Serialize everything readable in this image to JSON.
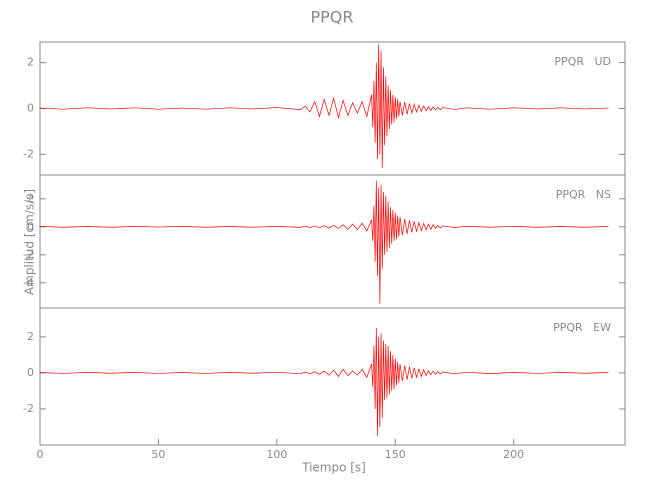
{
  "chart_data": [
    {
      "type": "line",
      "title": "PPQR",
      "label": "PPQR   UD",
      "color": "#ff0000",
      "x": [
        0,
        10,
        20,
        30,
        40,
        50,
        60,
        70,
        80,
        90,
        100,
        110,
        112,
        114,
        116,
        118,
        120,
        122,
        124,
        126,
        128,
        130,
        132,
        134,
        136,
        138,
        140,
        140.5,
        141,
        141.5,
        142,
        142.5,
        143,
        143.5,
        144,
        144.5,
        145,
        145.5,
        146,
        146.5,
        147,
        147.5,
        148,
        148.5,
        149,
        149.5,
        150,
        150.5,
        151,
        151.5,
        152,
        153,
        154,
        155,
        156,
        157,
        158,
        159,
        160,
        161,
        162,
        163,
        164,
        165,
        166,
        167,
        168,
        169,
        170,
        175,
        180,
        190,
        200,
        210,
        220,
        230,
        240
      ],
      "values": [
        0.02,
        -0.03,
        0.03,
        -0.02,
        0.03,
        -0.03,
        0.02,
        -0.03,
        0.03,
        -0.02,
        0.04,
        -0.05,
        0.1,
        -0.15,
        0.3,
        -0.35,
        0.4,
        -0.3,
        0.45,
        -0.4,
        0.35,
        -0.3,
        0.25,
        -0.2,
        0.3,
        -0.35,
        0.6,
        -0.8,
        1.2,
        -1.5,
        2.0,
        -2.2,
        2.8,
        -2.0,
        2.5,
        -2.6,
        1.8,
        -1.6,
        1.4,
        -1.2,
        1.0,
        -0.9,
        0.8,
        -0.7,
        0.6,
        -0.6,
        0.5,
        -0.45,
        0.4,
        -0.35,
        0.3,
        -0.3,
        0.28,
        -0.25,
        0.22,
        -0.2,
        0.18,
        -0.16,
        0.14,
        -0.12,
        0.1,
        -0.1,
        0.08,
        -0.08,
        0.07,
        -0.06,
        0.05,
        -0.05,
        0.04,
        -0.04,
        0.03,
        -0.03,
        0.03,
        -0.02,
        0.03,
        -0.02,
        0.02
      ],
      "xlim": [
        0,
        247
      ],
      "ylim": [
        -2.9,
        2.9
      ],
      "yticks": [
        2,
        0,
        -2
      ]
    },
    {
      "type": "line",
      "ylabel": "Amplitud [cm/s/s]",
      "label": "PPQR   NS",
      "color": "#ff0000",
      "x": [
        0,
        10,
        20,
        30,
        40,
        50,
        60,
        70,
        80,
        90,
        100,
        110,
        112,
        114,
        116,
        118,
        120,
        122,
        124,
        126,
        128,
        130,
        132,
        134,
        136,
        138,
        140,
        140.5,
        141,
        141.5,
        142,
        142.5,
        143,
        143.5,
        144,
        144.5,
        145,
        145.5,
        146,
        146.5,
        147,
        147.5,
        148,
        148.5,
        149,
        149.5,
        150,
        150.5,
        151,
        151.5,
        152,
        153,
        154,
        155,
        156,
        157,
        158,
        159,
        160,
        161,
        162,
        163,
        164,
        165,
        166,
        167,
        168,
        169,
        170,
        175,
        180,
        190,
        200,
        210,
        220,
        230,
        240
      ],
      "values": [
        0.03,
        -0.03,
        0.02,
        -0.03,
        0.03,
        -0.02,
        0.03,
        -0.03,
        0.02,
        -0.03,
        0.03,
        -0.04,
        0.05,
        -0.06,
        0.06,
        -0.07,
        0.08,
        -0.1,
        0.12,
        -0.12,
        0.15,
        -0.18,
        0.2,
        -0.2,
        0.25,
        -0.3,
        0.5,
        -1.0,
        1.5,
        -2.5,
        3.3,
        -3.5,
        2.8,
        -5.5,
        3.0,
        -3.0,
        2.5,
        -2.0,
        2.2,
        -1.8,
        1.8,
        -1.5,
        1.4,
        -1.2,
        1.2,
        -1.0,
        1.0,
        -0.9,
        0.8,
        -0.7,
        0.7,
        -0.6,
        0.55,
        -0.5,
        0.45,
        -0.4,
        0.38,
        -0.35,
        0.3,
        -0.28,
        0.25,
        -0.22,
        0.2,
        -0.18,
        0.15,
        -0.12,
        0.1,
        -0.08,
        0.06,
        -0.05,
        0.04,
        -0.03,
        0.03,
        -0.03,
        0.02,
        -0.03,
        0.02
      ],
      "xlim": [
        0,
        247
      ],
      "ylim": [
        -5.8,
        3.7
      ],
      "yticks": [
        2,
        0,
        -2,
        -4
      ]
    },
    {
      "type": "line",
      "xlabel": "Tiempo [s]",
      "label": "PPQR   EW",
      "color": "#ff0000",
      "x": [
        0,
        10,
        20,
        30,
        40,
        50,
        60,
        70,
        80,
        90,
        100,
        110,
        112,
        114,
        116,
        118,
        120,
        122,
        124,
        126,
        128,
        130,
        132,
        134,
        136,
        138,
        140,
        140.5,
        141,
        141.5,
        142,
        142.5,
        143,
        143.5,
        144,
        144.5,
        145,
        145.5,
        146,
        146.5,
        147,
        147.5,
        148,
        148.5,
        149,
        149.5,
        150,
        150.5,
        151,
        151.5,
        152,
        153,
        154,
        155,
        156,
        157,
        158,
        159,
        160,
        161,
        162,
        163,
        164,
        165,
        166,
        167,
        168,
        169,
        170,
        175,
        180,
        190,
        200,
        210,
        220,
        230,
        240
      ],
      "values": [
        0.02,
        -0.03,
        0.03,
        -0.02,
        0.03,
        -0.03,
        0.02,
        -0.03,
        0.03,
        -0.02,
        0.04,
        -0.05,
        0.05,
        -0.05,
        0.06,
        -0.08,
        0.1,
        -0.12,
        0.15,
        -0.2,
        0.2,
        -0.15,
        0.1,
        -0.12,
        0.2,
        -0.25,
        0.5,
        -0.8,
        1.5,
        -2.0,
        2.5,
        -3.5,
        2.0,
        -3.0,
        2.2,
        -2.5,
        1.8,
        -1.5,
        1.6,
        -1.4,
        1.5,
        -1.2,
        1.2,
        -1.0,
        1.0,
        -0.9,
        0.8,
        -0.7,
        0.6,
        -0.55,
        0.5,
        -0.45,
        0.4,
        -0.38,
        0.35,
        -0.3,
        0.28,
        -0.25,
        0.22,
        -0.2,
        0.18,
        -0.15,
        0.12,
        -0.1,
        0.1,
        -0.08,
        0.07,
        -0.06,
        0.05,
        -0.05,
        0.04,
        -0.04,
        0.03,
        -0.03,
        0.03,
        -0.02,
        0.02
      ],
      "xlim": [
        0,
        247
      ],
      "ylim": [
        -4,
        3.6
      ],
      "yticks": [
        2,
        0,
        -2
      ],
      "xticks": [
        0,
        50,
        100,
        150,
        200
      ]
    }
  ]
}
